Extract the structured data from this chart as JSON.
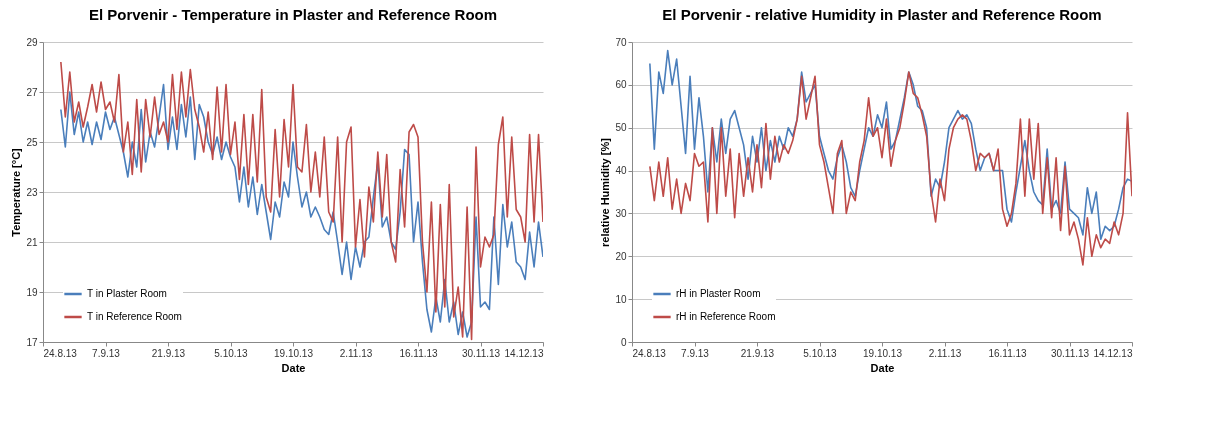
{
  "chart_data": [
    {
      "type": "line",
      "title": "El Porvenir - Temperature in Plaster and Reference Room",
      "xlabel": "Date",
      "ylabel": "Temperature [°C]",
      "x": [
        "2013-08-28",
        "2013-08-29",
        "2013-08-30",
        "2013-08-31",
        "2013-09-01",
        "2013-09-02",
        "2013-09-03",
        "2013-09-04",
        "2013-09-05",
        "2013-09-06",
        "2013-09-07",
        "2013-09-08",
        "2013-09-09",
        "2013-09-10",
        "2013-09-11",
        "2013-09-12",
        "2013-09-13",
        "2013-09-14",
        "2013-09-15",
        "2013-09-16",
        "2013-09-17",
        "2013-09-18",
        "2013-09-19",
        "2013-09-20",
        "2013-09-21",
        "2013-09-22",
        "2013-09-23",
        "2013-09-24",
        "2013-09-25",
        "2013-09-26",
        "2013-09-27",
        "2013-09-28",
        "2013-09-29",
        "2013-09-30",
        "2013-10-01",
        "2013-10-02",
        "2013-10-03",
        "2013-10-04",
        "2013-10-05",
        "2013-10-06",
        "2013-10-07",
        "2013-10-08",
        "2013-10-09",
        "2013-10-10",
        "2013-10-11",
        "2013-10-12",
        "2013-10-13",
        "2013-10-14",
        "2013-10-15",
        "2013-10-16",
        "2013-10-17",
        "2013-10-18",
        "2013-10-19",
        "2013-10-20",
        "2013-10-21",
        "2013-10-22",
        "2013-10-23",
        "2013-10-24",
        "2013-10-25",
        "2013-10-26",
        "2013-10-27",
        "2013-10-28",
        "2013-10-29",
        "2013-10-30",
        "2013-10-31",
        "2013-11-01",
        "2013-11-02",
        "2013-11-03",
        "2013-11-04",
        "2013-11-05",
        "2013-11-06",
        "2013-11-07",
        "2013-11-08",
        "2013-11-09",
        "2013-11-10",
        "2013-11-11",
        "2013-11-12",
        "2013-11-13",
        "2013-11-14",
        "2013-11-15",
        "2013-11-16",
        "2013-11-17",
        "2013-11-18",
        "2013-11-19",
        "2013-11-20",
        "2013-11-21",
        "2013-11-22",
        "2013-11-23",
        "2013-11-24",
        "2013-11-25",
        "2013-11-26",
        "2013-11-27",
        "2013-11-28",
        "2013-11-29",
        "2013-11-30",
        "2013-12-01",
        "2013-12-02",
        "2013-12-03",
        "2013-12-04",
        "2013-12-05",
        "2013-12-06",
        "2013-12-07",
        "2013-12-08",
        "2013-12-09",
        "2013-12-10",
        "2013-12-11",
        "2013-12-12",
        "2013-12-13",
        "2013-12-14"
      ],
      "series": [
        {
          "name": "T in Plaster Room",
          "color": "#4a7ebb",
          "values": [
            26.3,
            24.8,
            27.0,
            25.3,
            26.2,
            25.0,
            25.8,
            24.9,
            25.8,
            25.1,
            26.2,
            25.5,
            26.0,
            25.3,
            24.6,
            23.6,
            25.0,
            24.0,
            26.3,
            24.2,
            25.4,
            24.8,
            26.0,
            27.3,
            24.7,
            26.0,
            24.7,
            26.5,
            25.2,
            26.8,
            24.3,
            26.5,
            26.0,
            25.0,
            24.5,
            25.2,
            24.3,
            25.0,
            24.4,
            24.0,
            22.6,
            24.0,
            22.4,
            23.6,
            22.1,
            23.3,
            22.2,
            21.1,
            22.6,
            22.0,
            23.4,
            22.8,
            25.0,
            23.6,
            22.4,
            23.0,
            22.0,
            22.4,
            22.0,
            21.5,
            21.3,
            22.2,
            21.0,
            19.7,
            21.0,
            19.5,
            20.8,
            20.0,
            21.0,
            21.2,
            22.8,
            24.2,
            21.6,
            22.0,
            21.0,
            20.7,
            22.2,
            24.7,
            24.5,
            21.0,
            22.6,
            20.2,
            18.3,
            17.4,
            18.8,
            17.8,
            19.5,
            17.8,
            18.6,
            17.3,
            18.2,
            17.2,
            17.8,
            22.0,
            18.4,
            18.6,
            18.3,
            22.0,
            19.3,
            22.5,
            20.8,
            21.8,
            20.2,
            20.0,
            19.5,
            21.4,
            20.0,
            21.8,
            20.4
          ]
        },
        {
          "name": "T in Reference Room",
          "color": "#be4b48",
          "values": [
            28.2,
            26.0,
            27.8,
            25.8,
            26.6,
            25.6,
            26.4,
            27.3,
            26.2,
            27.4,
            26.3,
            26.6,
            25.8,
            27.7,
            24.6,
            25.8,
            23.7,
            26.7,
            23.8,
            26.7,
            25.2,
            26.8,
            25.3,
            25.8,
            25.0,
            27.7,
            25.5,
            27.8,
            26.0,
            27.9,
            26.3,
            25.6,
            24.6,
            26.2,
            24.3,
            27.2,
            24.6,
            27.3,
            24.5,
            25.8,
            23.5,
            26.1,
            23.3,
            26.1,
            23.4,
            27.1,
            22.8,
            22.2,
            25.5,
            22.8,
            25.9,
            24.0,
            27.3,
            24.0,
            23.8,
            25.7,
            23.0,
            24.6,
            22.8,
            25.2,
            22.2,
            21.8,
            25.2,
            21.0,
            25.0,
            25.6,
            20.8,
            22.7,
            20.4,
            23.2,
            21.8,
            24.6,
            22.0,
            24.5,
            21.0,
            20.2,
            23.9,
            21.6,
            25.4,
            25.7,
            25.2,
            21.0,
            19.0,
            22.6,
            18.2,
            22.5,
            18.4,
            23.3,
            18.0,
            19.2,
            17.2,
            22.4,
            17.1,
            24.8,
            20.0,
            21.2,
            20.8,
            21.3,
            24.9,
            26.0,
            22.0,
            25.2,
            22.3,
            22.0,
            21.0,
            25.3,
            21.8,
            25.3,
            21.8
          ]
        }
      ],
      "xlim": [
        "2013-08-24",
        "2013-12-14"
      ],
      "xticks": [
        {
          "value": "2013-08-24",
          "label": "24.8.13"
        },
        {
          "value": "2013-09-07",
          "label": "7.9.13"
        },
        {
          "value": "2013-09-21",
          "label": "21.9.13"
        },
        {
          "value": "2013-10-05",
          "label": "5.10.13"
        },
        {
          "value": "2013-10-19",
          "label": "19.10.13"
        },
        {
          "value": "2013-11-02",
          "label": "2.11.13"
        },
        {
          "value": "2013-11-16",
          "label": "16.11.13"
        },
        {
          "value": "2013-11-30",
          "label": "30.11.13"
        },
        {
          "value": "2013-12-14",
          "label": "14.12.13"
        }
      ],
      "ylim": [
        17,
        29
      ],
      "yticks": [
        17,
        19,
        21,
        23,
        25,
        27,
        29
      ],
      "grid": "y",
      "legend": "bottom left"
    },
    {
      "type": "line",
      "title": "El Porvenir - relative Humidity in Plaster and Reference Room",
      "xlabel": "Date",
      "ylabel": "relative Humidity [%]",
      "x": [
        "2013-08-28",
        "2013-08-29",
        "2013-08-30",
        "2013-08-31",
        "2013-09-01",
        "2013-09-02",
        "2013-09-03",
        "2013-09-04",
        "2013-09-05",
        "2013-09-06",
        "2013-09-07",
        "2013-09-08",
        "2013-09-09",
        "2013-09-10",
        "2013-09-11",
        "2013-09-12",
        "2013-09-13",
        "2013-09-14",
        "2013-09-15",
        "2013-09-16",
        "2013-09-17",
        "2013-09-18",
        "2013-09-19",
        "2013-09-20",
        "2013-09-21",
        "2013-09-22",
        "2013-09-23",
        "2013-09-24",
        "2013-09-25",
        "2013-09-26",
        "2013-09-27",
        "2013-09-28",
        "2013-09-29",
        "2013-09-30",
        "2013-10-01",
        "2013-10-02",
        "2013-10-03",
        "2013-10-04",
        "2013-10-05",
        "2013-10-06",
        "2013-10-07",
        "2013-10-08",
        "2013-10-09",
        "2013-10-10",
        "2013-10-11",
        "2013-10-12",
        "2013-10-13",
        "2013-10-14",
        "2013-10-15",
        "2013-10-16",
        "2013-10-17",
        "2013-10-18",
        "2013-10-19",
        "2013-10-20",
        "2013-10-21",
        "2013-10-22",
        "2013-10-23",
        "2013-10-24",
        "2013-10-25",
        "2013-10-26",
        "2013-10-27",
        "2013-10-28",
        "2013-10-29",
        "2013-10-30",
        "2013-10-31",
        "2013-11-01",
        "2013-11-02",
        "2013-11-03",
        "2013-11-04",
        "2013-11-05",
        "2013-11-06",
        "2013-11-07",
        "2013-11-08",
        "2013-11-09",
        "2013-11-10",
        "2013-11-11",
        "2013-11-12",
        "2013-11-13",
        "2013-11-14",
        "2013-11-15",
        "2013-11-16",
        "2013-11-17",
        "2013-11-18",
        "2013-11-19",
        "2013-11-20",
        "2013-11-21",
        "2013-11-22",
        "2013-11-23",
        "2013-11-24",
        "2013-11-25",
        "2013-11-26",
        "2013-11-27",
        "2013-11-28",
        "2013-11-29",
        "2013-11-30",
        "2013-12-01",
        "2013-12-02",
        "2013-12-03",
        "2013-12-04",
        "2013-12-05",
        "2013-12-06",
        "2013-12-07",
        "2013-12-08",
        "2013-12-09",
        "2013-12-10",
        "2013-12-11",
        "2013-12-12",
        "2013-12-13",
        "2013-12-14"
      ],
      "series": [
        {
          "name": "rH in Plaster Room",
          "color": "#4a7ebb",
          "values": [
            65,
            45,
            63,
            58,
            68,
            60,
            66,
            55,
            44,
            62,
            45,
            57,
            48,
            35,
            50,
            42,
            52,
            44,
            52,
            54,
            50,
            46,
            38,
            48,
            42,
            50,
            40,
            47,
            42,
            48,
            45,
            50,
            48,
            52,
            63,
            56,
            58,
            60,
            48,
            44,
            40,
            38,
            43,
            46,
            42,
            36,
            34,
            40,
            45,
            50,
            48,
            53,
            50,
            56,
            45,
            47,
            52,
            57,
            63,
            60,
            55,
            54,
            50,
            34,
            38,
            36,
            42,
            50,
            52,
            54,
            52,
            53,
            51,
            45,
            40,
            43,
            44,
            40,
            40,
            40,
            31,
            28,
            35,
            41,
            47,
            40,
            35,
            33,
            32,
            45,
            31,
            33,
            30,
            42,
            31,
            30,
            29,
            25,
            36,
            30,
            35,
            24,
            27,
            26,
            27,
            31,
            36,
            38,
            37.5
          ]
        },
        {
          "name": "rH in Reference Room",
          "color": "#be4b48",
          "values": [
            41,
            33,
            42,
            34,
            43,
            31,
            38,
            30,
            37,
            33,
            44,
            41,
            42,
            28,
            50,
            30,
            50,
            34,
            45,
            29,
            44,
            34,
            43,
            35,
            46,
            36,
            51,
            38,
            48,
            42,
            46,
            44,
            47,
            52,
            62,
            52,
            57,
            62,
            46,
            42,
            36,
            30,
            44,
            47,
            30,
            35,
            33,
            42,
            47,
            57,
            48,
            50,
            43,
            52,
            41,
            47,
            50,
            56,
            63,
            58,
            57,
            53,
            48,
            35,
            28,
            38,
            33,
            45,
            50,
            52,
            53,
            52,
            47,
            40,
            44,
            43,
            44,
            40,
            45,
            31,
            27,
            30,
            37,
            52,
            34,
            52,
            38,
            51,
            30,
            43,
            29,
            43,
            26,
            41,
            25,
            28,
            24,
            18,
            29,
            20,
            25,
            22,
            24,
            23,
            28,
            25,
            30,
            53.5,
            34
          ]
        }
      ],
      "xlim": [
        "2013-08-24",
        "2013-12-14"
      ],
      "xticks": [
        {
          "value": "2013-08-24",
          "label": "24.8.13"
        },
        {
          "value": "2013-09-07",
          "label": "7.9.13"
        },
        {
          "value": "2013-09-21",
          "label": "21.9.13"
        },
        {
          "value": "2013-10-05",
          "label": "5.10.13"
        },
        {
          "value": "2013-10-19",
          "label": "19.10.13"
        },
        {
          "value": "2013-11-02",
          "label": "2.11.13"
        },
        {
          "value": "2013-11-16",
          "label": "16.11.13"
        },
        {
          "value": "2013-11-30",
          "label": "30.11.13"
        },
        {
          "value": "2013-12-14",
          "label": "14.12.13"
        }
      ],
      "ylim": [
        0,
        70
      ],
      "yticks": [
        0,
        10,
        20,
        30,
        40,
        50,
        60,
        70
      ],
      "grid": "y",
      "legend": "bottom left"
    }
  ]
}
